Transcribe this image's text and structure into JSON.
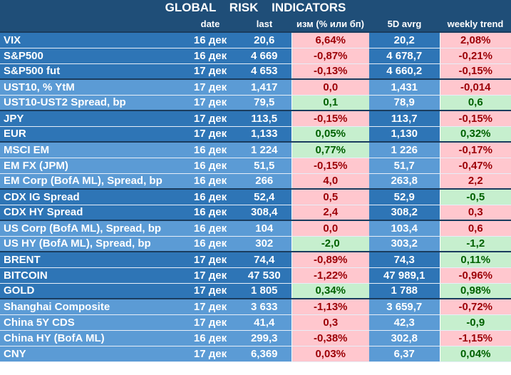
{
  "title": "GLOBAL RISK INDICATORS",
  "headers": [
    "",
    "date",
    "last",
    "изм (% или бп)",
    "5D avrg",
    "weekly trend"
  ],
  "colors": {
    "header_bg": "#1f4e78",
    "row_dark": "#2e75b6",
    "row_light": "#5b9bd5",
    "neg_bg": "#ffc7ce",
    "neg_fg": "#9c0006",
    "pos_bg": "#c6efce",
    "pos_fg": "#006100"
  },
  "rows": [
    {
      "name": "VIX",
      "date": "16 дек",
      "last": "20,6",
      "chg": "6,64%",
      "chg_status": "neg",
      "avg": "20,2",
      "trend": "2,08%",
      "trend_status": "neg",
      "shade": "dark",
      "group_start": true
    },
    {
      "name": "S&P500",
      "date": "16 дек",
      "last": "4 669",
      "chg": "-0,87%",
      "chg_status": "neg",
      "avg": "4 678,7",
      "trend": "-0,21%",
      "trend_status": "neg",
      "shade": "dark",
      "group_start": false
    },
    {
      "name": "S&P500 fut",
      "date": "17 дек",
      "last": "4 653",
      "chg": "-0,13%",
      "chg_status": "neg",
      "avg": "4 660,2",
      "trend": "-0,15%",
      "trend_status": "neg",
      "shade": "dark",
      "group_start": false
    },
    {
      "name": "UST10, % YtM",
      "date": "17 дек",
      "last": "1,417",
      "chg": "0,0",
      "chg_status": "neg",
      "avg": "1,431",
      "trend": "-0,014",
      "trend_status": "neg",
      "shade": "light",
      "group_start": true
    },
    {
      "name": "UST10-UST2 Spread, bp",
      "date": "17 дек",
      "last": "79,5",
      "chg": "0,1",
      "chg_status": "pos",
      "avg": "78,9",
      "trend": "0,6",
      "trend_status": "pos",
      "shade": "light",
      "group_start": false
    },
    {
      "name": "JPY",
      "date": "17 дек",
      "last": "113,5",
      "chg": "-0,15%",
      "chg_status": "neg",
      "avg": "113,7",
      "trend": "-0,15%",
      "trend_status": "neg",
      "shade": "dark",
      "group_start": true
    },
    {
      "name": "EUR",
      "date": "17 дек",
      "last": "1,133",
      "chg": "0,05%",
      "chg_status": "pos",
      "avg": "1,130",
      "trend": "0,32%",
      "trend_status": "pos",
      "shade": "dark",
      "group_start": false
    },
    {
      "name": "MSCI EM",
      "date": "16 дек",
      "last": "1 224",
      "chg": "0,77%",
      "chg_status": "pos",
      "avg": "1 226",
      "trend": "-0,17%",
      "trend_status": "neg",
      "shade": "light",
      "group_start": true
    },
    {
      "name": "EM FX (JPM)",
      "date": "16 дек",
      "last": "51,5",
      "chg": "-0,15%",
      "chg_status": "neg",
      "avg": "51,7",
      "trend": "-0,47%",
      "trend_status": "neg",
      "shade": "light",
      "group_start": false
    },
    {
      "name": "EM Corp (BofA ML), Spread, bp",
      "date": "16 дек",
      "last": "266",
      "chg": "4,0",
      "chg_status": "neg",
      "avg": "263,8",
      "trend": "2,2",
      "trend_status": "neg",
      "shade": "light",
      "group_start": false
    },
    {
      "name": "CDX IG Spread",
      "date": "16 дек",
      "last": "52,4",
      "chg": "0,5",
      "chg_status": "neg",
      "avg": "52,9",
      "trend": "-0,5",
      "trend_status": "pos",
      "shade": "dark",
      "group_start": true
    },
    {
      "name": "CDX HY Spread",
      "date": "16 дек",
      "last": "308,4",
      "chg": "2,4",
      "chg_status": "neg",
      "avg": "308,2",
      "trend": "0,3",
      "trend_status": "neg",
      "shade": "dark",
      "group_start": false
    },
    {
      "name": "US Corp (BofA ML), Spread, bp",
      "date": "16 дек",
      "last": "104",
      "chg": "0,0",
      "chg_status": "neg",
      "avg": "103,4",
      "trend": "0,6",
      "trend_status": "neg",
      "shade": "light",
      "group_start": true
    },
    {
      "name": "US HY (BofA ML), Spread, bp",
      "date": "16 дек",
      "last": "302",
      "chg": "-2,0",
      "chg_status": "pos",
      "avg": "303,2",
      "trend": "-1,2",
      "trend_status": "pos",
      "shade": "light",
      "group_start": false
    },
    {
      "name": "BRENT",
      "date": "17 дек",
      "last": "74,4",
      "chg": "-0,89%",
      "chg_status": "neg",
      "avg": "74,3",
      "trend": "0,11%",
      "trend_status": "pos",
      "shade": "dark",
      "group_start": true
    },
    {
      "name": "BITCOIN",
      "date": "17 дек",
      "last": "47 530",
      "chg": "-1,22%",
      "chg_status": "neg",
      "avg": "47 989,1",
      "trend": "-0,96%",
      "trend_status": "neg",
      "shade": "dark",
      "group_start": false
    },
    {
      "name": "GOLD",
      "date": "17 дек",
      "last": "1 805",
      "chg": "0,34%",
      "chg_status": "pos",
      "avg": "1 788",
      "trend": "0,98%",
      "trend_status": "pos",
      "shade": "dark",
      "group_start": false
    },
    {
      "name": "Shanghai Composite",
      "date": "17 дек",
      "last": "3 633",
      "chg": "-1,13%",
      "chg_status": "neg",
      "avg": "3 659,7",
      "trend": "-0,72%",
      "trend_status": "neg",
      "shade": "light",
      "group_start": true
    },
    {
      "name": "China 5Y CDS",
      "date": "17 дек",
      "last": "41,4",
      "chg": "0,3",
      "chg_status": "neg",
      "avg": "42,3",
      "trend": "-0,9",
      "trend_status": "pos",
      "shade": "light",
      "group_start": false
    },
    {
      "name": "China HY (BofA ML)",
      "date": "16 дек",
      "last": "299,3",
      "chg": "-0,38%",
      "chg_status": "neg",
      "avg": "302,8",
      "trend": "-1,15%",
      "trend_status": "neg",
      "shade": "light",
      "group_start": false
    },
    {
      "name": "CNY",
      "date": "17 дек",
      "last": "6,369",
      "chg": "0,03%",
      "chg_status": "neg",
      "avg": "6,37",
      "trend": "0,04%",
      "trend_status": "pos",
      "shade": "light",
      "group_start": false
    }
  ]
}
